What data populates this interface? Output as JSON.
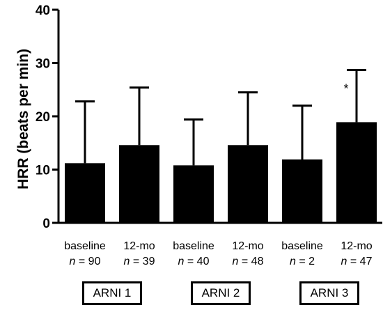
{
  "chart_data": {
    "type": "bar",
    "ylabel": "HRR (beats per min)",
    "ylim": [
      0,
      40
    ],
    "yticks": [
      0,
      10,
      20,
      30,
      40
    ],
    "categories": [
      "baseline",
      "12-mo",
      "baseline",
      "12-mo",
      "baseline",
      "12-mo"
    ],
    "n_values": [
      "90",
      "39",
      "40",
      "48",
      "2",
      "47"
    ],
    "n_symbol": "n",
    "values": [
      11.2,
      14.6,
      10.8,
      14.6,
      11.9,
      18.9
    ],
    "error_upper": [
      22.8,
      25.4,
      19.4,
      24.5,
      22.0,
      28.7
    ],
    "annotations": [
      {
        "bar_index": 5,
        "text": "*"
      }
    ],
    "groups": [
      {
        "label": "ARNI 1",
        "bars": [
          0,
          1
        ]
      },
      {
        "label": "ARNI 2",
        "bars": [
          2,
          3
        ]
      },
      {
        "label": "ARNI 3",
        "bars": [
          4,
          5
        ]
      }
    ],
    "bar_color": "#000000",
    "grid": false
  }
}
